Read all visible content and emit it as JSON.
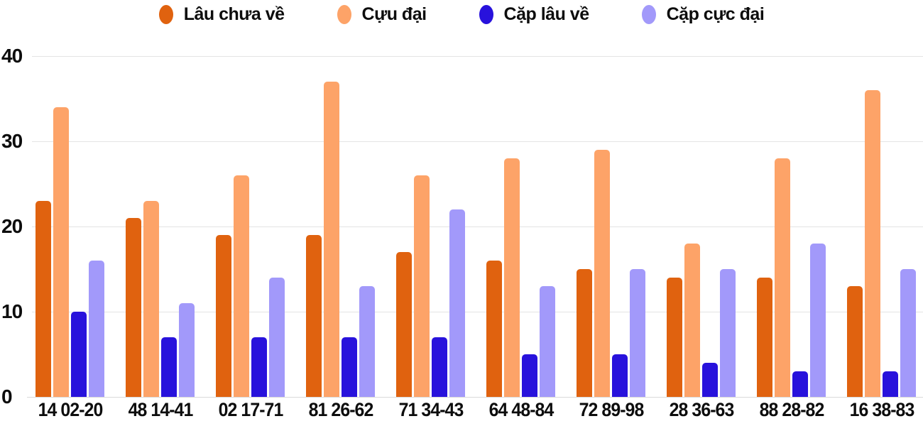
{
  "chart_data": {
    "type": "bar",
    "title": "",
    "xlabel": "",
    "ylabel": "",
    "categories": [
      "14 02-20",
      "48 14-41",
      "02 17-71",
      "81 26-62",
      "71 34-43",
      "64 48-84",
      "72 89-98",
      "28 36-63",
      "88 28-82",
      "16 38-83"
    ],
    "series": [
      {
        "name": "Lâu chưa về",
        "color": "#e0620f",
        "values": [
          23,
          21,
          19,
          19,
          17,
          16,
          15,
          14,
          14,
          13
        ]
      },
      {
        "name": "Cựu đại",
        "color": "#fda368",
        "values": [
          34,
          23,
          26,
          37,
          26,
          28,
          29,
          18,
          28,
          36
        ]
      },
      {
        "name": "Cặp lâu về",
        "color": "#2812dc",
        "values": [
          10,
          7,
          7,
          7,
          7,
          5,
          5,
          4,
          3,
          3
        ]
      },
      {
        "name": "Cặp cực đại",
        "color": "#a299fa",
        "values": [
          16,
          11,
          14,
          13,
          22,
          13,
          15,
          15,
          18,
          15
        ]
      }
    ],
    "ylim": [
      0,
      40
    ],
    "yticks": [
      0,
      10,
      20,
      30,
      40
    ],
    "grid": true,
    "legend_position": "top"
  },
  "colors": {
    "background": "#ffffff",
    "gridline": "#e4e4e4",
    "axis_text": "#0d0d0d"
  }
}
